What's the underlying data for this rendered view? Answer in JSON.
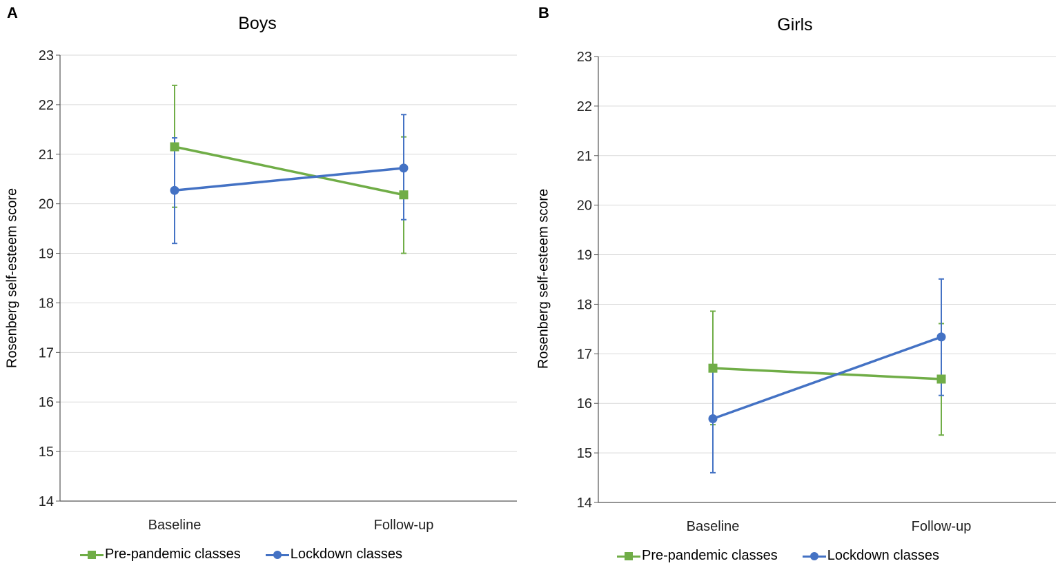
{
  "chart_data": [
    {
      "panel": "A",
      "type": "line",
      "title": "Boys",
      "xlabel": "",
      "ylabel": "Rosenberg self-esteem  score",
      "categories": [
        "Baseline",
        "Follow-up"
      ],
      "ylim": [
        14,
        23
      ],
      "yticks": [
        "14",
        "15",
        "16",
        "17",
        "18",
        "19",
        "20",
        "21",
        "22",
        "23"
      ],
      "grid": true,
      "legend_position": "bottom",
      "series": [
        {
          "name": "Pre-pandemic classes",
          "color": "#70AD47",
          "marker": "square",
          "values": [
            21.15,
            20.18
          ],
          "error_low": [
            19.93,
            19.0
          ],
          "error_high": [
            22.39,
            21.35
          ]
        },
        {
          "name": "Lockdown classes",
          "color": "#4472C4",
          "marker": "circle",
          "values": [
            20.27,
            20.72
          ],
          "error_low": [
            19.2,
            19.68
          ],
          "error_high": [
            21.33,
            21.8
          ]
        }
      ]
    },
    {
      "panel": "B",
      "type": "line",
      "title": "Girls",
      "xlabel": "",
      "ylabel": "Rosenberg self-esteem  score",
      "categories": [
        "Baseline",
        "Follow-up"
      ],
      "ylim": [
        14,
        23
      ],
      "yticks": [
        "14",
        "15",
        "16",
        "17",
        "18",
        "19",
        "20",
        "21",
        "22",
        "23"
      ],
      "grid": true,
      "legend_position": "bottom",
      "series": [
        {
          "name": "Pre-pandemic classes",
          "color": "#70AD47",
          "marker": "square",
          "values": [
            16.71,
            16.49
          ],
          "error_low": [
            15.57,
            15.36
          ],
          "error_high": [
            17.86,
            17.61
          ]
        },
        {
          "name": "Lockdown classes",
          "color": "#4472C4",
          "marker": "circle",
          "values": [
            15.69,
            17.34
          ],
          "error_low": [
            14.6,
            16.16
          ],
          "error_high": [
            16.78,
            18.51
          ]
        }
      ]
    }
  ]
}
